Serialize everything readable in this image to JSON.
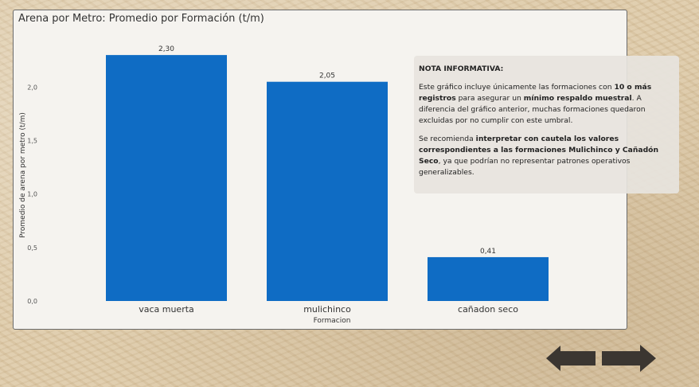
{
  "chart_data": {
    "type": "bar",
    "title": "Arena por Metro: Promedio por Formación (t/m)",
    "xlabel": "Formacion",
    "ylabel": "Promedio de arena por metro (t/m)",
    "categories": [
      "vaca muerta",
      "mulichinco",
      "cañadon seco"
    ],
    "values": [
      2.3,
      2.05,
      0.41
    ],
    "value_labels": [
      "2,30",
      "2,05",
      "0,41"
    ],
    "yticks": [
      "0,0",
      "0,5",
      "1,0",
      "1,5",
      "2,0"
    ],
    "ytick_values": [
      0.0,
      0.5,
      1.0,
      1.5,
      2.0
    ],
    "ylim": [
      0,
      2.42
    ],
    "bar_color": "#0f6cc4",
    "grid": false,
    "legend": "none"
  },
  "note": {
    "heading": "NOTA INFORMATIVA:",
    "p1": [
      {
        "t": "Este gráfico incluye únicamente las formaciones con ",
        "b": false
      },
      {
        "t": "10 o más registros",
        "b": true
      },
      {
        "t": " para asegurar un ",
        "b": false
      },
      {
        "t": "mínimo respaldo muestral",
        "b": true
      },
      {
        "t": ". A diferencia del gráfico anterior, muchas formaciones quedaron excluidas por no cumplir con este umbral.",
        "b": false
      }
    ],
    "p2": [
      {
        "t": "Se recomienda ",
        "b": false
      },
      {
        "t": "interpretar con cautela los valores correspondientes a las formaciones Mulichinco y Cañadón Seco",
        "b": true
      },
      {
        "t": ", ya que podrían no representar patrones operativos generalizables.",
        "b": false
      }
    ]
  },
  "nav": {
    "back_icon": "arrow-left-icon",
    "next_icon": "arrow-right-icon",
    "arrow_color": "#3b3631"
  }
}
